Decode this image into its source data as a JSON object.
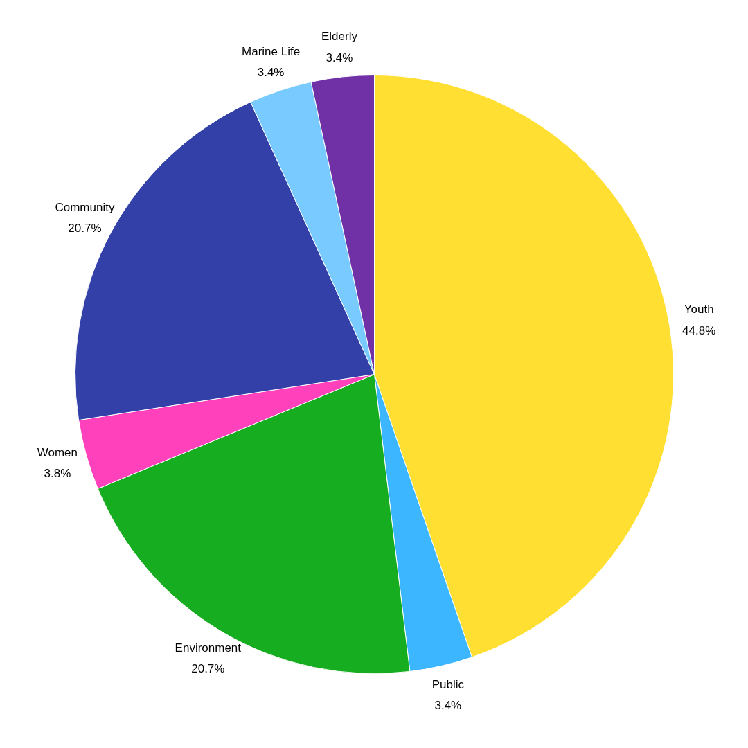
{
  "chart_data": {
    "type": "pie",
    "categories": [
      "Youth",
      "Public",
      "Environment",
      "Women",
      "Community",
      "Marine Life",
      "Elderly"
    ],
    "values": [
      44.8,
      3.4,
      20.7,
      3.8,
      20.7,
      3.4,
      3.4
    ],
    "value_labels": [
      "44.8%",
      "3.4%",
      "20.7%",
      "3.8%",
      "20.7%",
      "3.4%",
      "3.4%"
    ],
    "colors": [
      "#fedf32",
      "#3bb6ff",
      "#17ad21",
      "#ff42bc",
      "#3240a8",
      "#79cbff",
      "#6f31a5"
    ],
    "legend": false
  }
}
